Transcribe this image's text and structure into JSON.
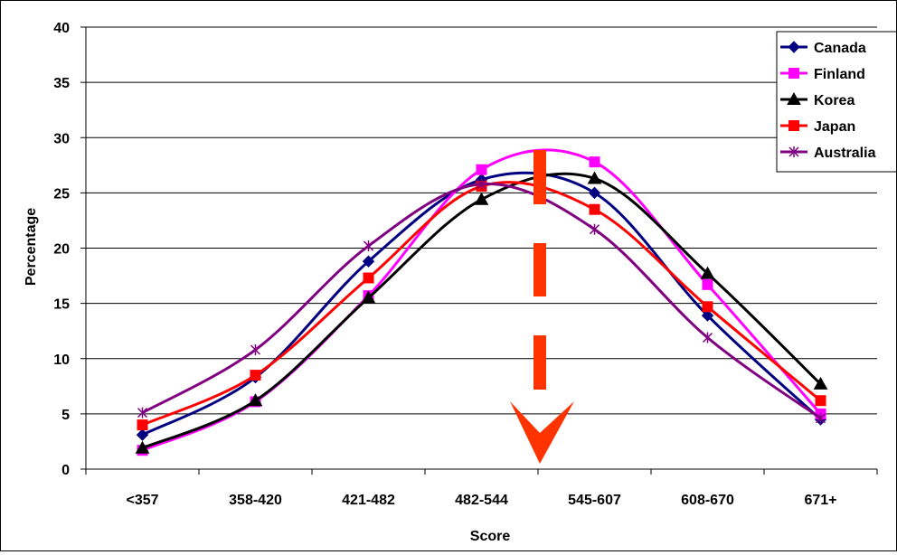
{
  "chart_data": {
    "type": "line",
    "title": "",
    "xlabel": "Score",
    "ylabel": "Percentage",
    "categories": [
      "<357",
      "358-420",
      "421-482",
      "482-544",
      "545-607",
      "608-670",
      "671+"
    ],
    "ylim": [
      0,
      40
    ],
    "yticks": [
      0,
      5,
      10,
      15,
      20,
      25,
      30,
      35,
      40
    ],
    "grid": "horizontal",
    "legend_position": "top-right",
    "smooth": true,
    "series": [
      {
        "name": "Canada",
        "color": "#000080",
        "marker": "diamond",
        "values": [
          3.1,
          8.3,
          18.8,
          26.2,
          25.0,
          13.9,
          4.5
        ]
      },
      {
        "name": "Finland",
        "color": "#FF00FF",
        "marker": "square",
        "values": [
          1.7,
          6.1,
          15.7,
          27.1,
          27.8,
          16.7,
          5.0
        ]
      },
      {
        "name": "Korea",
        "color": "#000000",
        "marker": "triangle",
        "values": [
          1.9,
          6.2,
          15.5,
          24.4,
          26.3,
          17.7,
          7.7
        ]
      },
      {
        "name": "Japan",
        "color": "#FF0000",
        "marker": "square",
        "values": [
          4.0,
          8.5,
          17.3,
          25.6,
          23.5,
          14.7,
          6.2
        ]
      },
      {
        "name": "Australia",
        "color": "#800080",
        "marker": "star",
        "values": [
          5.1,
          10.8,
          20.2,
          25.8,
          21.7,
          11.9,
          4.6
        ]
      }
    ],
    "annotations": [
      {
        "type": "dashed-arrow",
        "color": "#FF3300",
        "direction": "down"
      }
    ]
  }
}
